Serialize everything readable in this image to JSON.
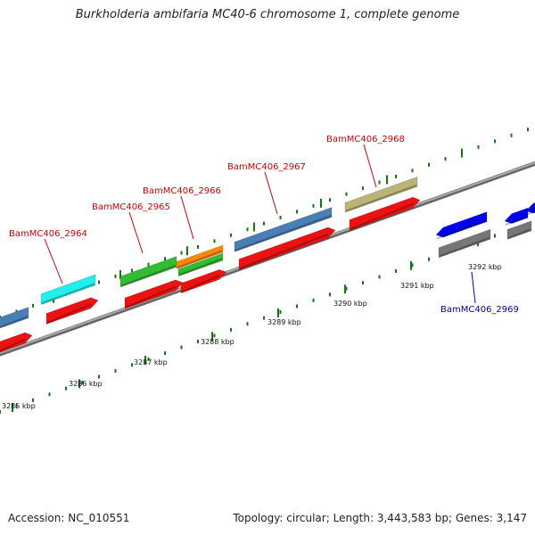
{
  "title": "Burkholderia ambifaria MC40-6 chromosome 1, complete genome",
  "footer": {
    "accession_label": "Accession:",
    "accession": "NC_010551",
    "topology_label": "Topology:",
    "topology": "circular",
    "length_label": "Length:",
    "length": "3,443,583 bp",
    "genes_label": "Genes:",
    "genes": "3,147"
  },
  "ticks": [
    "3285 kbp",
    "3286 kbp",
    "3287 kbp",
    "3288 kbp",
    "3289 kbp",
    "3290 kbp",
    "3291 kbp",
    "3292 kbp"
  ],
  "gene_labels": [
    {
      "text": "BamMC406_2964",
      "color": "#cc0000"
    },
    {
      "text": "BamMC406_2965",
      "color": "#cc0000"
    },
    {
      "text": "BamMC406_2966",
      "color": "#cc0000"
    },
    {
      "text": "BamMC406_2967",
      "color": "#cc0000"
    },
    {
      "text": "BamMC406_2968",
      "color": "#cc0000"
    },
    {
      "text": "BamMC406_2969",
      "color": "#0000aa"
    }
  ],
  "colors": {
    "cds": "#ee1111",
    "cds_reverse": "#0000ee",
    "steelblue": "#4a7fb5",
    "cyan": "#22eeee",
    "green": "#33bb33",
    "orange": "#ff8800",
    "khaki": "#bbb477",
    "gray": "#777777",
    "tick": "#117711",
    "backbone": "#888888"
  }
}
